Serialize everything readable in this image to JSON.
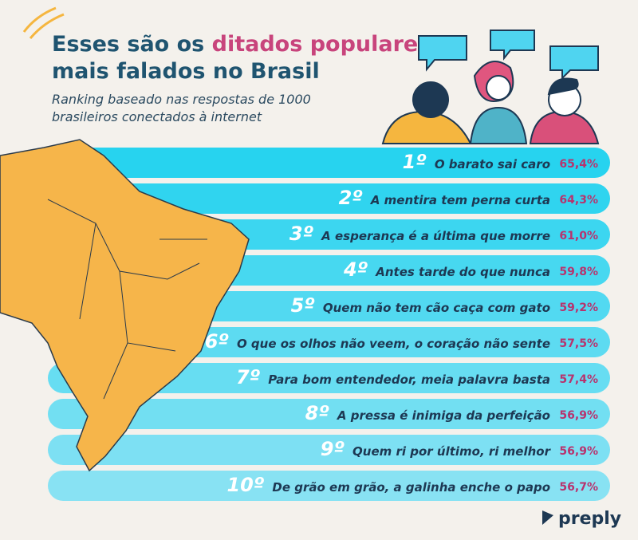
{
  "title": {
    "part1": "Esses são os ",
    "highlight": "ditados populares",
    "part2": "mais falados no Brasil"
  },
  "subtitle": [
    "Ranking baseado nas respostas de 1000",
    "brasileiros conectados à internet"
  ],
  "ranking": [
    {
      "rank": "1º",
      "text": "O barato sai caro",
      "value": "65,4%"
    },
    {
      "rank": "2º",
      "text": "A mentira tem perna curta",
      "value": "64,3%"
    },
    {
      "rank": "3º",
      "text": "A esperança é a última que morre",
      "value": "61,0%"
    },
    {
      "rank": "4º",
      "text": "Antes tarde do que nunca",
      "value": "59,8%"
    },
    {
      "rank": "5º",
      "text": "Quem não tem cão caça com gato",
      "value": "59,2%"
    },
    {
      "rank": "6º",
      "text": "O que os olhos não veem, o coração não sente",
      "value": "57,5%"
    },
    {
      "rank": "7º",
      "text": "Para bom entendedor, meia palavra basta",
      "value": "57,4%"
    },
    {
      "rank": "8º",
      "text": "A pressa é inimiga da perfeição",
      "value": "56,9%"
    },
    {
      "rank": "9º",
      "text": "Quem ri por último, ri melhor",
      "value": "56,9%"
    },
    {
      "rank": "10º",
      "text": "De grão em grão, a galinha enche o papo",
      "value": "56,7%"
    }
  ],
  "logo": "preply"
}
